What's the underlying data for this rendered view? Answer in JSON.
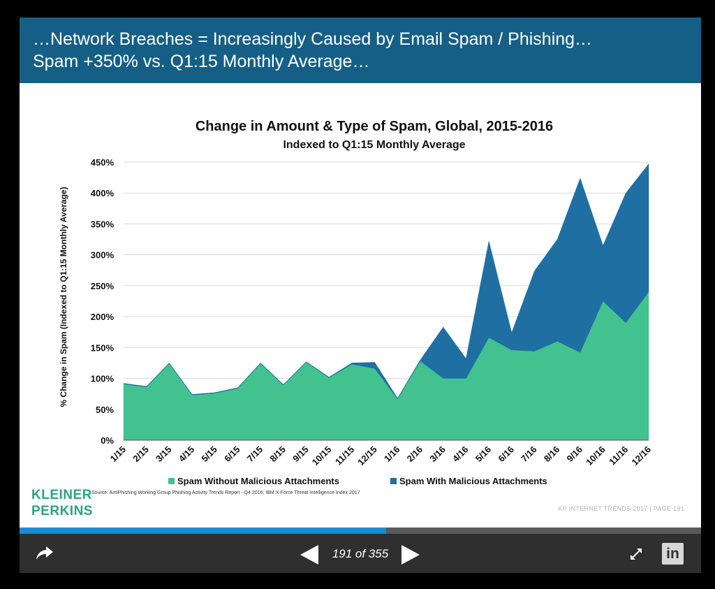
{
  "header": {
    "line1": "…Network Breaches = Increasingly Caused by Email Spam / Phishing…",
    "line2": "Spam +350% vs. Q1:15 Monthly Average…",
    "background_color": "#155f87"
  },
  "chart_data": {
    "type": "area",
    "stacked": true,
    "title": "Change in Amount & Type of Spam, Global, 2015-2016",
    "subtitle": "Indexed to Q1:15 Monthly Average",
    "xlabel": "",
    "ylabel": "% Change in Spam (Indexed to Q1:15 Monthly Average)",
    "ylim": [
      0,
      450
    ],
    "yticks": [
      0,
      50,
      100,
      150,
      200,
      250,
      300,
      350,
      400,
      450
    ],
    "ytick_labels": [
      "0%",
      "50%",
      "100%",
      "150%",
      "200%",
      "250%",
      "300%",
      "350%",
      "400%",
      "450%"
    ],
    "grid": true,
    "legend_position": "bottom",
    "categories": [
      "1/15",
      "2/15",
      "3/15",
      "4/15",
      "5/15",
      "6/15",
      "7/15",
      "8/15",
      "9/15",
      "10/15",
      "11/15",
      "12/15",
      "1/16",
      "2/16",
      "3/16",
      "4/16",
      "5/16",
      "6/16",
      "7/16",
      "8/16",
      "9/16",
      "10/16",
      "11/16",
      "12/16"
    ],
    "series": [
      {
        "name": "Spam Without Malicious Attachments",
        "color": "#41c28f",
        "values": [
          91,
          86,
          124,
          73,
          76,
          84,
          124,
          89,
          126,
          101,
          123,
          116,
          67,
          128,
          100,
          100,
          166,
          146,
          144,
          160,
          142,
          225,
          190,
          240
        ]
      },
      {
        "name": "Spam With Malicious Attachments",
        "color": "#1f6fa3",
        "values": [
          1,
          1,
          1,
          1,
          1,
          1,
          1,
          1,
          1,
          1,
          2,
          10,
          1,
          2,
          83,
          32,
          156,
          28,
          130,
          165,
          282,
          90,
          210,
          207
        ]
      }
    ]
  },
  "logo": {
    "line1": "KLEINER",
    "line2": "PERKINS",
    "color": "#2ca37f"
  },
  "source_note": "Source: AntiPhishing Working Group Phishing Activity Trends Report - Q4 2016; IBM X-Force Threat Intelligence Index 2017",
  "footer_note": "KP INTERNET TRENDS 2017   |   PAGE 191",
  "progress": {
    "fraction": 0.538,
    "color": "#1a8bcf"
  },
  "toolbar": {
    "page_counter": "191 of 355",
    "share_icon": "share-arrow-icon",
    "prev_icon": "triangle-left-icon",
    "next_icon": "triangle-right-icon",
    "fullscreen_icon": "expand-arrows-icon",
    "linkedin_icon": "linkedin-icon",
    "linkedin_label": "in"
  }
}
